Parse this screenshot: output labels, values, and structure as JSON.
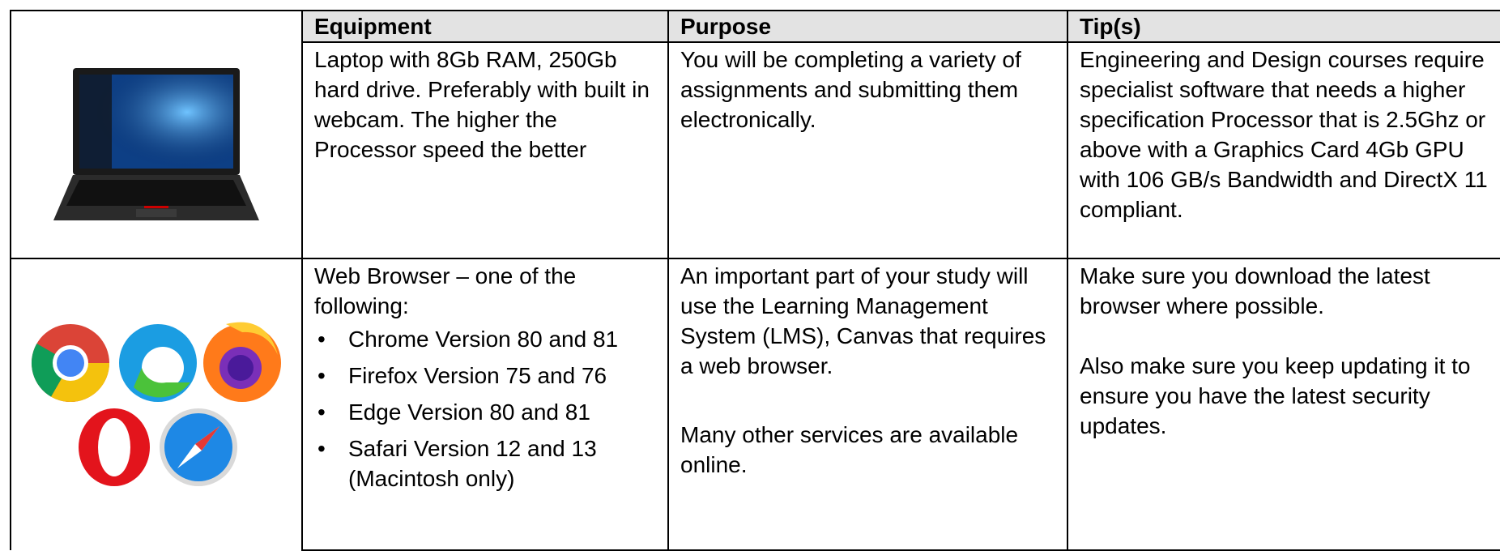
{
  "table": {
    "header": [
      "Equipment",
      "Purpose",
      "Tip(s)"
    ],
    "rows": [
      {
        "equipment": "Laptop with 8Gb RAM, 250Gb hard drive. Preferably with built in webcam. The higher the Processor speed the better",
        "purpose": [
          "You will be completing a variety of assignments and submitting them electronically."
        ],
        "tips": [
          "Engineering and Design courses require specialist software that needs a higher specification Processor that is 2.5Ghz or above with a Graphics Card 4Gb GPU with 106 GB/s Bandwidth and DirectX 11 compliant."
        ]
      },
      {
        "equipment": "Web Browser – one of the following:",
        "bullets": [
          "Chrome Version 80 and 81",
          "Firefox Version 75 and 76",
          "Edge Version 80 and 81",
          "Safari Version 12 and 13 (Macintosh only)"
        ],
        "purpose": [
          "An important part of your study will use the Learning Management System (LMS), Canvas that requires a web browser.",
          "Many other services are available online."
        ],
        "tips": [
          "Make sure you download the latest browser where possible.",
          "Also make sure you keep updating it to ensure you have the latest security updates."
        ]
      }
    ]
  }
}
